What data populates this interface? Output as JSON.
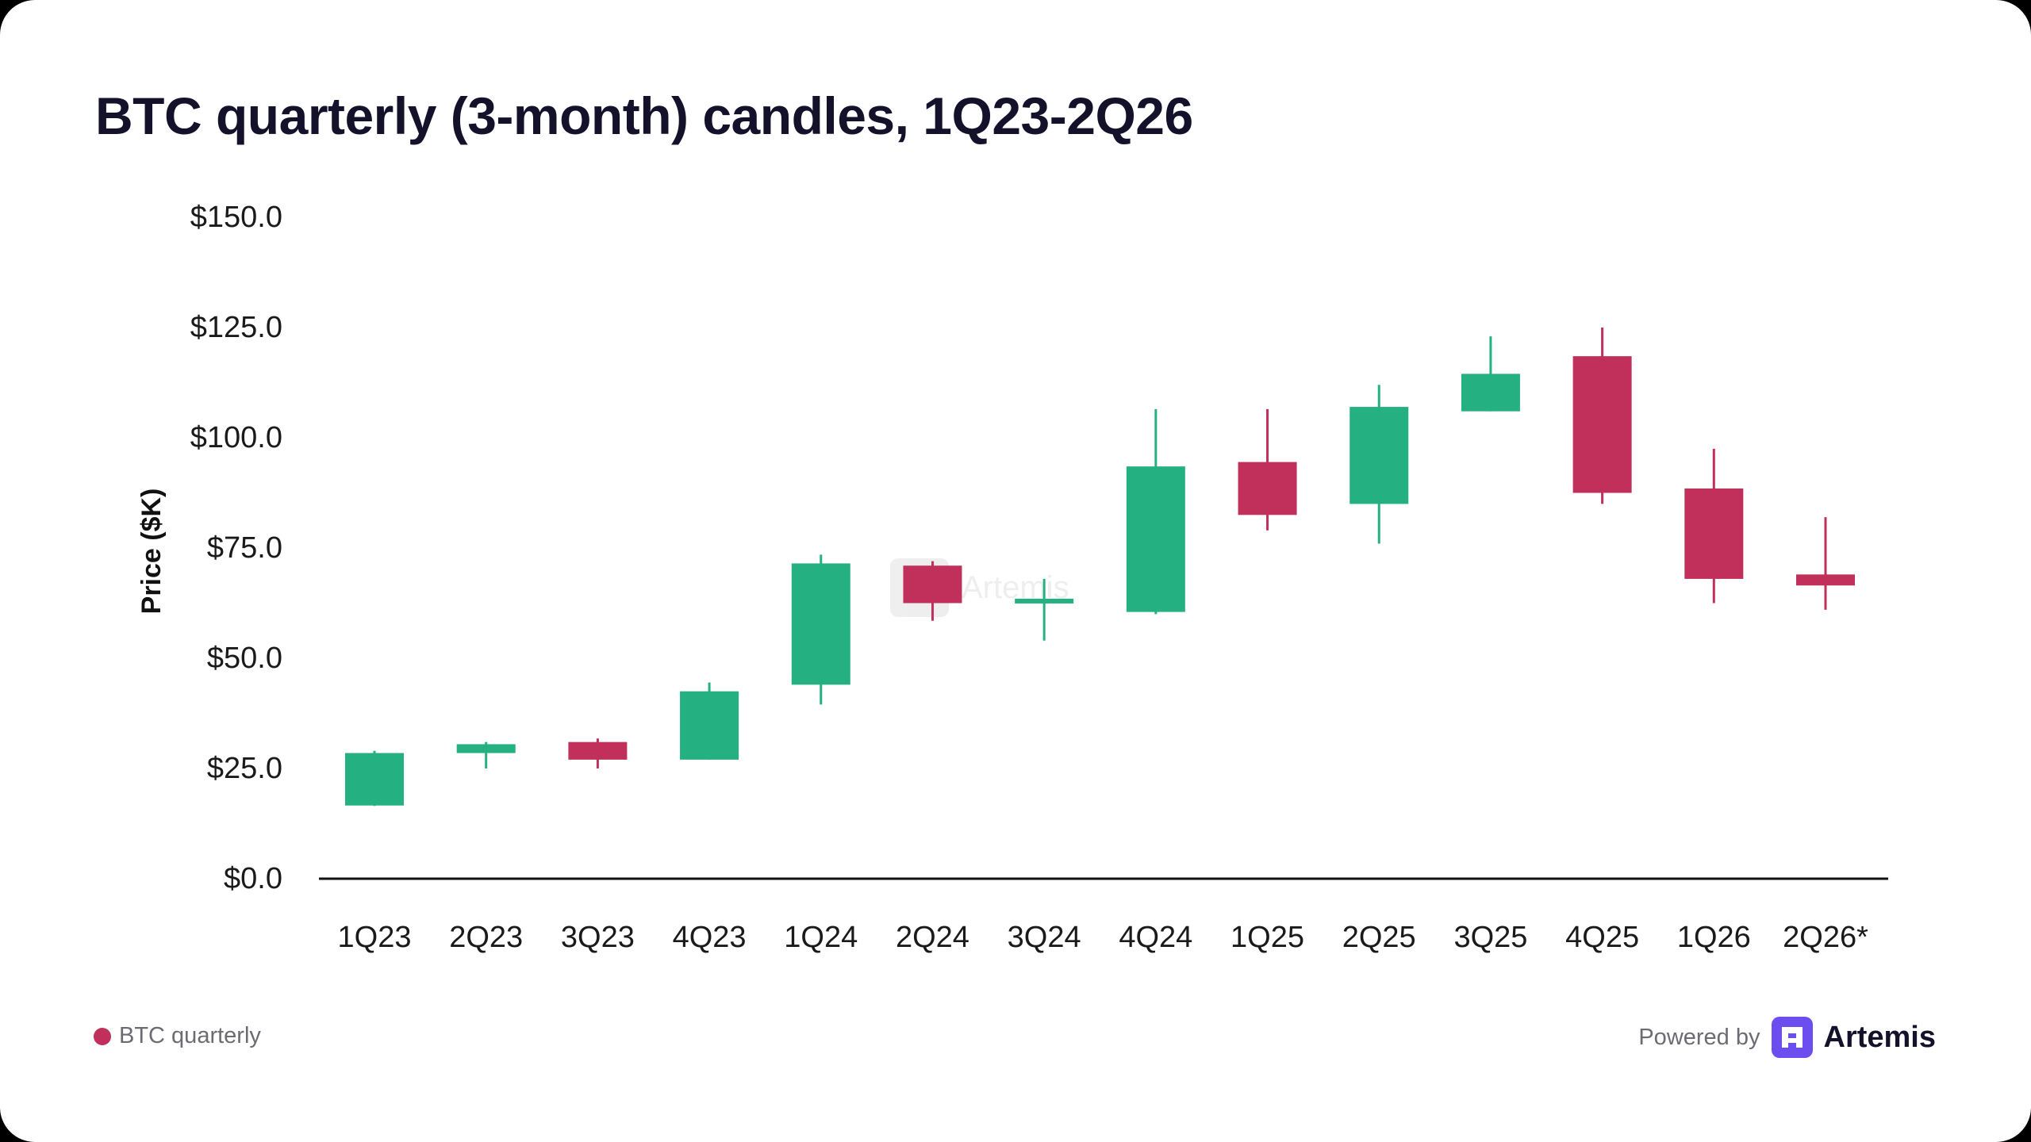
{
  "title": "BTC quarterly (3-month) candles, 1Q23-2Q26",
  "legend": {
    "label": "BTC quarterly",
    "color": "#c0305b"
  },
  "footer": {
    "powered_by": "Powered by",
    "brand": "Artemis",
    "watermark": "Artemis"
  },
  "colors": {
    "up": "#25b082",
    "down": "#c0305b",
    "axis": "#111111",
    "brand": "#6b4df0"
  },
  "chart_data": {
    "type": "candlestick",
    "title": "BTC quarterly (3-month) candles, 1Q23-2Q26",
    "ylabel": "Price ($K)",
    "ylim": [
      0,
      150
    ],
    "yticks": [
      0,
      25,
      50,
      75,
      100,
      125,
      150
    ],
    "ytick_labels": [
      "$0.0",
      "$25.0",
      "$50.0",
      "$75.0",
      "$100.0",
      "$125.0",
      "$150.0"
    ],
    "grid": false,
    "categories": [
      "1Q23",
      "2Q23",
      "3Q23",
      "4Q23",
      "1Q24",
      "2Q24",
      "3Q24",
      "4Q24",
      "1Q25",
      "2Q25",
      "3Q25",
      "4Q25",
      "1Q26",
      "2Q26*"
    ],
    "open": [
      16.6,
      28.5,
      31.0,
      27.0,
      44.0,
      71.0,
      62.7,
      60.5,
      94.5,
      85.0,
      106.0,
      118.5,
      88.5,
      69.0
    ],
    "high": [
      29.0,
      31.0,
      31.8,
      44.5,
      73.5,
      72.0,
      68.0,
      106.5,
      106.5,
      112.0,
      123.0,
      125.0,
      97.5,
      82.0
    ],
    "low": [
      16.5,
      25.0,
      25.0,
      27.0,
      39.5,
      58.5,
      54.0,
      60.0,
      79.0,
      76.0,
      106.0,
      85.0,
      62.5,
      61.0
    ],
    "close": [
      28.5,
      30.5,
      27.0,
      42.5,
      71.5,
      62.5,
      63.5,
      93.5,
      82.5,
      107.0,
      114.5,
      87.5,
      68.0,
      66.5
    ]
  }
}
